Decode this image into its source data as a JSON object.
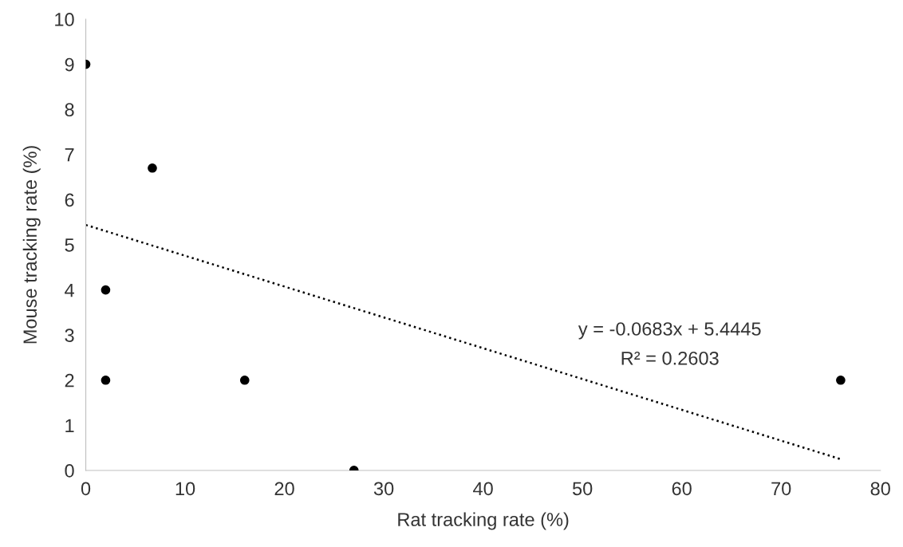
{
  "chart_data": {
    "type": "scatter",
    "xlabel": "Rat tracking rate (%)",
    "ylabel": "Mouse tracking rate (%)",
    "x": [
      0,
      6.7,
      2,
      2,
      16,
      27,
      76
    ],
    "series": [
      {
        "color": "#000000",
        "marker": "circle",
        "values": [
          9,
          6.7,
          4,
          2,
          2,
          0,
          2
        ]
      },
      {
        "type": "line",
        "color": "#000000",
        "line_style": "dotted",
        "marker": "none",
        "x": [
          0,
          76
        ],
        "values": [
          5.44,
          0.25
        ]
      }
    ],
    "xlim": [
      0,
      80
    ],
    "xticks": [
      0,
      10,
      20,
      30,
      40,
      50,
      60,
      70,
      80
    ],
    "ylim": [
      0,
      10
    ],
    "yticks": [
      0,
      1,
      2,
      3,
      4,
      5,
      6,
      7,
      8,
      9,
      10
    ],
    "grid": false,
    "legend": false,
    "annotations": [
      "y = -0.0683x + 5.4445",
      "R² = 0.2603"
    ]
  }
}
